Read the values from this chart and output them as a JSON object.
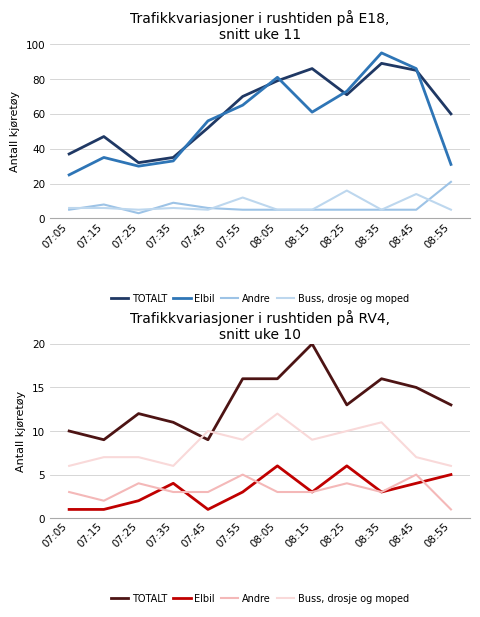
{
  "time_labels": [
    "07:05",
    "07:15",
    "07:25",
    "07:35",
    "07:45",
    "07:55",
    "08:05",
    "08:15",
    "08:25",
    "08:35",
    "08:45",
    "08:55"
  ],
  "chart1": {
    "title": "Trafikkvariasjoner i rushtiden på E18,\nsnitt uke 11",
    "ylabel": "Antall kjøretøy",
    "ylim": [
      0,
      100
    ],
    "yticks": [
      0,
      20,
      40,
      60,
      80,
      100
    ],
    "series": {
      "TOTALT": [
        37,
        47,
        32,
        35,
        52,
        70,
        79,
        86,
        71,
        89,
        85,
        60
      ],
      "Elbil": [
        25,
        35,
        30,
        33,
        56,
        65,
        81,
        61,
        73,
        95,
        86,
        31
      ],
      "Andre": [
        5,
        8,
        3,
        9,
        6,
        5,
        5,
        5,
        5,
        5,
        5,
        21
      ],
      "Buss, drosje og moped": [
        6,
        6,
        5,
        6,
        5,
        12,
        5,
        5,
        16,
        5,
        14,
        5
      ]
    },
    "colors": {
      "TOTALT": "#1f3864",
      "Elbil": "#2e75b6",
      "Andre": "#9dc3e6",
      "Buss, drosje og moped": "#bdd7ee"
    },
    "linewidths": {
      "TOTALT": 2.0,
      "Elbil": 2.0,
      "Andre": 1.5,
      "Buss, drosje og moped": 1.5
    }
  },
  "chart2": {
    "title": "Trafikkvariasjoner i rushtiden på RV4,\nsnitt uke 10",
    "ylabel": "Antall kjøretøy",
    "ylim": [
      0,
      20
    ],
    "yticks": [
      0,
      5,
      10,
      15,
      20
    ],
    "series": {
      "TOTALT": [
        10,
        9,
        12,
        11,
        9,
        16,
        16,
        20,
        13,
        16,
        15,
        13
      ],
      "Elbil": [
        1,
        1,
        2,
        4,
        1,
        3,
        6,
        3,
        6,
        3,
        4,
        5
      ],
      "Andre": [
        3,
        2,
        4,
        3,
        3,
        5,
        3,
        3,
        4,
        3,
        5,
        1
      ],
      "Buss, drosje og moped": [
        6,
        7,
        7,
        6,
        10,
        9,
        12,
        9,
        10,
        11,
        7,
        6
      ]
    },
    "colors": {
      "TOTALT": "#4d1414",
      "Elbil": "#c00000",
      "Andre": "#f4b8b8",
      "Buss, drosje og moped": "#f9d9d9"
    },
    "linewidths": {
      "TOTALT": 2.0,
      "Elbil": 2.0,
      "Andre": 1.5,
      "Buss, drosje og moped": 1.5
    }
  },
  "legend_order": [
    "TOTALT",
    "Elbil",
    "Andre",
    "Buss, drosje og moped"
  ],
  "background_color": "#ffffff",
  "title_fontsize": 10,
  "ylabel_fontsize": 8,
  "tick_fontsize": 7.5,
  "legend_fontsize": 7
}
